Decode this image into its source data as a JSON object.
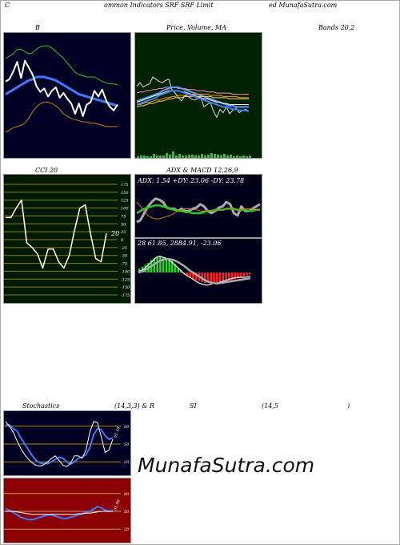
{
  "header": {
    "left": "C",
    "middle": "ommon  Indicators SRF SRF Limit",
    "right": "ed MunafaSutra.com"
  },
  "labels": {
    "bollinger": "B",
    "price_ma": "Price,  Volume, MA",
    "bands": "Bands 20,2",
    "cci": "CCI 20",
    "adx_macd": "ADX  & MACD 12,26,9",
    "stochastics": "Stochastics",
    "stoch_params": "(14,3,3) & R",
    "rsi": "SI",
    "rsi_params": "(14,5",
    "rsi_close": ")"
  },
  "watermark": "MunafaSutra.com",
  "colors": {
    "bollinger_bg": "#000024",
    "price_bg": "#002200",
    "cci_bg": "#001a00",
    "adx_bg": "#000018",
    "stoch_bg": "#000022",
    "rsi_bg": "#8b0000"
  },
  "chart_data": [
    {
      "id": "bollinger",
      "type": "line",
      "series": [
        {
          "role": "upper",
          "color": "#22cc22",
          "values": [
            82,
            84,
            86,
            90,
            90,
            88,
            86,
            87,
            90,
            92,
            93,
            93,
            91,
            88,
            85,
            82,
            78,
            74,
            70,
            68,
            67,
            66,
            66,
            66,
            64,
            62,
            61,
            60,
            60,
            59
          ]
        },
        {
          "role": "middle",
          "color": "#3a7bff",
          "values": [
            51,
            53,
            55,
            57,
            59,
            61,
            63,
            64,
            66,
            66,
            66,
            65,
            64,
            63,
            61,
            59,
            57,
            55,
            53,
            51,
            50,
            49,
            48,
            47,
            46,
            45,
            44,
            43,
            42,
            41
          ]
        },
        {
          "role": "lower",
          "color": "#d07a1a",
          "values": [
            18,
            20,
            22,
            23,
            24,
            26,
            30,
            36,
            40,
            43,
            44,
            44,
            43,
            41,
            38,
            34,
            32,
            30,
            29,
            28,
            27,
            27,
            26,
            26,
            25,
            24,
            23,
            23,
            23,
            23
          ]
        },
        {
          "role": "price",
          "color": "#ffffff",
          "values": [
            62,
            64,
            71,
            79,
            65,
            80,
            74,
            68,
            58,
            53,
            56,
            49,
            54,
            57,
            48,
            52,
            47,
            43,
            34,
            43,
            32,
            42,
            44,
            54,
            49,
            55,
            46,
            40,
            37,
            42
          ]
        }
      ]
    },
    {
      "id": "price_ma",
      "type": "line",
      "series": [
        {
          "role": "price",
          "color": "#dddddd",
          "values": [
            58,
            61,
            57,
            59,
            60,
            66,
            64,
            62,
            61,
            63,
            64,
            55,
            52,
            48,
            45,
            50,
            49,
            47,
            46,
            47,
            48,
            40,
            42,
            44,
            36,
            31,
            38,
            35,
            40,
            34,
            37,
            39,
            35,
            37,
            38,
            36
          ]
        },
        {
          "role": "ma-long",
          "color": "#ff88cc",
          "values": [
            52,
            53,
            53,
            54,
            54,
            55,
            55,
            56,
            56,
            57,
            57,
            57,
            57,
            56,
            56,
            56,
            55,
            55,
            55,
            54,
            54,
            54,
            53,
            53,
            53,
            52,
            52,
            52,
            52,
            52,
            51,
            51,
            51,
            51,
            51,
            51
          ]
        },
        {
          "role": "ma-mid",
          "color": "#6699ff",
          "values": [
            45,
            46,
            47,
            48,
            49,
            50,
            51,
            52,
            54,
            55,
            56,
            57,
            57,
            57,
            56,
            55,
            54,
            53,
            52,
            51,
            50,
            49,
            48,
            47,
            46,
            45,
            44,
            43,
            42,
            41,
            41,
            40,
            40,
            40,
            40,
            40
          ]
        },
        {
          "role": "ma-mid2",
          "color": "#ffffff",
          "values": [
            44,
            45,
            46,
            47,
            48,
            49,
            50,
            51,
            52,
            53,
            54,
            54,
            54,
            54,
            53,
            53,
            52,
            51,
            50,
            49,
            48,
            47,
            47,
            46,
            45,
            44,
            44,
            43,
            43,
            42,
            42,
            42,
            42,
            42,
            42,
            42
          ]
        },
        {
          "role": "ma-short",
          "color": "#ff9900",
          "values": [
            42,
            42,
            43,
            44,
            44,
            45,
            46,
            46,
            47,
            48,
            48,
            49,
            49,
            50,
            50,
            50,
            51,
            51,
            51,
            51,
            51,
            51,
            51,
            50,
            50,
            50,
            50,
            49,
            49,
            49,
            49,
            49,
            48,
            48,
            48,
            48
          ]
        },
        {
          "role": "ma-short2",
          "color": "#ffcc66",
          "values": [
            40,
            41,
            41,
            42,
            43,
            43,
            44,
            45,
            45,
            46,
            47,
            47,
            48,
            48,
            48,
            49,
            49,
            49,
            49,
            49,
            49,
            49,
            49,
            49,
            48,
            48,
            48,
            48,
            48,
            47,
            47,
            47,
            47,
            47,
            47,
            47
          ]
        },
        {
          "role": "ma-blue",
          "color": "#3a7bff",
          "values": [
            42,
            43,
            44,
            45,
            46,
            47,
            48,
            50,
            51,
            52,
            53,
            54,
            54,
            54,
            53,
            52,
            51,
            50,
            49,
            48,
            47,
            46,
            45,
            44,
            43,
            42,
            41,
            40,
            40,
            39,
            38,
            38,
            37,
            37,
            37,
            36
          ]
        }
      ],
      "volume": [
        2,
        3,
        3,
        2,
        2,
        5,
        3,
        3,
        3,
        6,
        4,
        8,
        3,
        5,
        3,
        3,
        4,
        4,
        3,
        3,
        5,
        3,
        4,
        6,
        5,
        4,
        3,
        5,
        3,
        4,
        2,
        3,
        2,
        3,
        2,
        3
      ]
    },
    {
      "id": "cci",
      "type": "line",
      "yticks": [
        175,
        150,
        125,
        100,
        75,
        50,
        25,
        0,
        -25,
        -50,
        -75,
        -100,
        -125,
        -150,
        -175
      ],
      "ylim": [
        -175,
        175
      ],
      "last_label": "20",
      "series": [
        {
          "role": "cci",
          "color": "#ffffff",
          "values": [
            70,
            70,
            100,
            125,
            -10,
            -25,
            -45,
            -90,
            -30,
            -30,
            -70,
            -90,
            -50,
            30,
            100,
            110,
            20,
            -60,
            -70,
            20
          ]
        }
      ]
    },
    {
      "id": "adx",
      "type": "line",
      "title": "ADX: 1.54  +DY: 23.06  -DY: 23.78",
      "series": [
        {
          "role": "adx-ribbon",
          "color": "#aaaaaa",
          "values": [
            12,
            14,
            20,
            26,
            30,
            33,
            32,
            30,
            25,
            24,
            24,
            22,
            24,
            22,
            22,
            24,
            25,
            28,
            26,
            22,
            20,
            22,
            25,
            26,
            30,
            28,
            20,
            18,
            26,
            22,
            22,
            24,
            26,
            28
          ]
        },
        {
          "role": "plus-dy",
          "color": "#22cc22",
          "values": [
            20,
            22,
            24,
            25,
            26,
            27,
            27,
            26,
            25,
            24,
            23,
            22,
            22,
            21,
            21,
            20,
            20,
            20,
            21,
            22,
            22,
            23,
            23,
            23,
            24,
            24,
            24,
            23,
            23,
            23,
            22,
            22,
            23,
            23
          ]
        },
        {
          "role": "minus-dy",
          "color": "#d07a1a",
          "values": [
            30,
            26,
            22,
            18,
            16,
            15,
            15,
            16,
            17,
            18,
            20,
            22,
            23,
            24,
            24,
            23,
            23,
            22,
            22,
            22,
            22,
            22,
            23,
            23,
            24,
            24,
            23,
            23,
            23,
            24,
            24,
            24,
            23,
            23
          ]
        }
      ]
    },
    {
      "id": "macd",
      "type": "bar",
      "title": "28              61.85,  2884.91,  -23.06",
      "histogram": [
        8,
        12,
        16,
        20,
        26,
        30,
        32,
        34,
        32,
        30,
        28,
        24,
        18,
        10,
        4,
        -2,
        -6,
        -10,
        -14,
        -16,
        -18,
        -20,
        -22,
        -22,
        -22,
        -22,
        -22,
        -22,
        -20,
        -18,
        -18,
        -16,
        -14,
        -12,
        -10,
        -8,
        -6,
        -4
      ],
      "series": [
        {
          "role": "macd",
          "color": "#ffffff",
          "values": [
            2,
            4,
            8,
            14,
            20,
            26,
            32,
            34,
            32,
            30,
            26,
            22,
            16,
            10,
            4,
            -2,
            -6,
            -10,
            -14,
            -18,
            -22,
            -24,
            -26,
            -26,
            -24,
            -22,
            -22,
            -20,
            -18,
            -16,
            -14,
            -12,
            -11,
            -10,
            -10,
            -10,
            -9,
            -8
          ]
        },
        {
          "role": "signal",
          "color": "#aaaaaa",
          "values": [
            0,
            2,
            4,
            8,
            12,
            16,
            20,
            24,
            26,
            28,
            28,
            27,
            25,
            22,
            18,
            14,
            9,
            4,
            0,
            -4,
            -8,
            -12,
            -16,
            -19,
            -21,
            -22,
            -23,
            -22,
            -21,
            -20,
            -19,
            -18,
            -17,
            -16,
            -15,
            -14,
            -13,
            -12
          ]
        }
      ]
    },
    {
      "id": "stochastics",
      "type": "line",
      "yticks": [
        80,
        50,
        20
      ],
      "ylim": [
        0,
        100
      ],
      "last_label": "61.16",
      "series": [
        {
          "role": "slow",
          "color": "#3a7bff",
          "values": [
            82,
            82,
            76,
            72,
            60,
            50,
            40,
            30,
            22,
            18,
            17,
            17,
            20,
            24,
            28,
            26,
            20,
            16,
            20,
            26,
            28,
            32,
            44,
            66,
            76,
            74,
            64,
            58,
            60
          ]
        },
        {
          "role": "fast",
          "color": "#ffffff",
          "values": [
            88,
            80,
            70,
            55,
            42,
            32,
            24,
            18,
            14,
            13,
            15,
            20,
            26,
            30,
            22,
            14,
            12,
            18,
            30,
            30,
            26,
            40,
            70,
            88,
            86,
            62,
            36,
            40,
            58
          ]
        }
      ]
    },
    {
      "id": "rsi",
      "type": "line",
      "yticks": [
        80,
        50,
        20
      ],
      "ylim": [
        0,
        100
      ],
      "last_label": "51.06",
      "series": [
        {
          "role": "rsi",
          "color": "#3a7bff",
          "values": [
            54,
            52,
            48,
            44,
            40,
            38,
            36,
            36,
            38,
            40,
            42,
            44,
            44,
            42,
            40,
            38,
            38,
            40,
            42,
            44,
            46,
            48,
            50,
            54,
            58,
            56,
            52,
            50,
            51
          ]
        },
        {
          "role": "ma",
          "color": "#ffffff",
          "values": [
            50,
            50,
            50,
            49,
            48,
            47,
            46,
            45,
            45,
            45,
            45,
            45,
            45,
            45,
            45,
            45,
            45,
            45,
            45,
            46,
            46,
            47,
            47,
            48,
            49,
            50,
            50,
            50,
            50
          ]
        }
      ]
    }
  ]
}
